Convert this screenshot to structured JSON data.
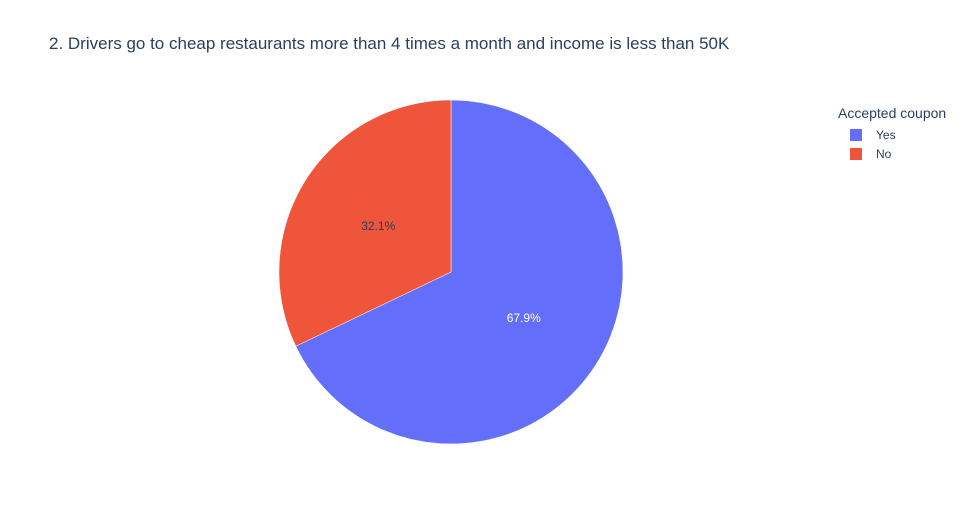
{
  "chart_data": {
    "type": "pie",
    "title": "2. Drivers go to cheap restaurants more than 4 times a month and income is less than 50K",
    "legend_title": "Accepted coupon",
    "legend_placement": "top-right",
    "slices": [
      {
        "label": "Yes",
        "percent": 67.9,
        "percent_label": "67.9%",
        "color": "#636efa",
        "label_color": "#ffffff"
      },
      {
        "label": "No",
        "percent": 32.1,
        "percent_label": "32.1%",
        "color": "#ef553b",
        "label_color": "#2a3f5f"
      }
    ],
    "direction": "clockwise",
    "start": "top"
  }
}
